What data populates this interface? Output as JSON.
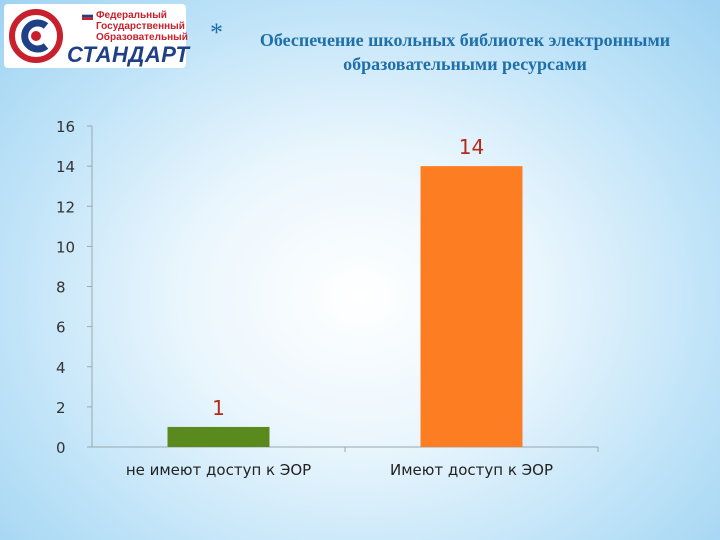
{
  "logo": {
    "lines": [
      "Федеральный",
      "Государственный",
      "Образовательный"
    ],
    "word": "СТАНДАРТ",
    "colors": {
      "red": "#c8202d",
      "blue": "#1f3f86"
    }
  },
  "header": {
    "bullet": "*",
    "title_line1": "Обеспечение школьных библиотек электронными",
    "title_line2": "образовательными ресурсами"
  },
  "chart_data": {
    "type": "bar",
    "categories": [
      "не имеют доступ к ЭОР",
      "Имеют доступ к ЭОР"
    ],
    "values": [
      1,
      14
    ],
    "data_labels": [
      "1",
      "14"
    ],
    "colors": [
      "#5a8a1e",
      "#fd7e22"
    ],
    "label_colors": [
      "#b5291d",
      "#b5291d"
    ],
    "yticks": [
      0,
      2,
      4,
      6,
      8,
      10,
      12,
      14,
      16
    ],
    "ylim": [
      0,
      16
    ],
    "grid": false,
    "legend": "none"
  }
}
